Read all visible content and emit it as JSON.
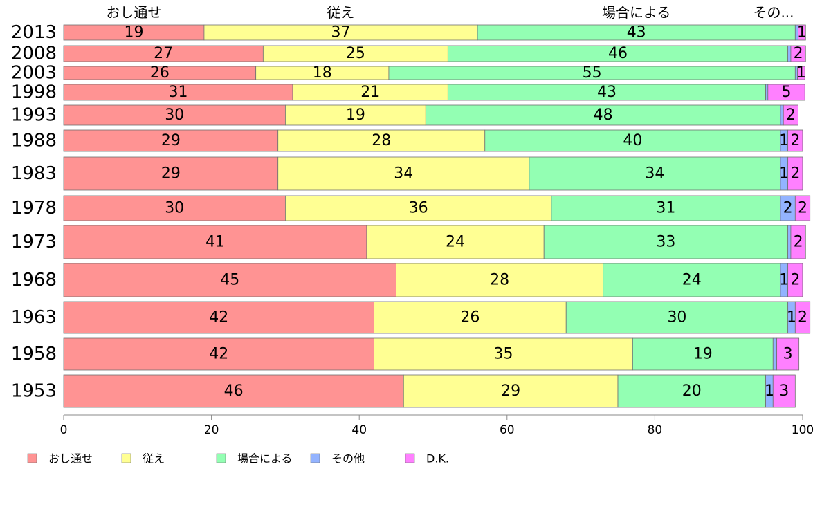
{
  "chart_data": {
    "type": "bar",
    "orientation": "horizontal",
    "stacked": true,
    "categories": [
      "2013",
      "2008",
      "2003",
      "1998",
      "1993",
      "1988",
      "1983",
      "1978",
      "1973",
      "1968",
      "1963",
      "1958",
      "1953"
    ],
    "series": [
      {
        "name": "おし通せ",
        "color": "#ff9393",
        "values": [
          19,
          27,
          26,
          31,
          30,
          29,
          29,
          30,
          41,
          45,
          42,
          42,
          46
        ]
      },
      {
        "name": "従え",
        "color": "#ffff93",
        "values": [
          37,
          25,
          18,
          21,
          19,
          28,
          34,
          36,
          24,
          28,
          26,
          35,
          29
        ]
      },
      {
        "name": "場合による",
        "color": "#93ffb3",
        "values": [
          43,
          46,
          55,
          43,
          48,
          40,
          34,
          31,
          33,
          24,
          30,
          19,
          20
        ]
      },
      {
        "name": "その他",
        "color": "#93b3ff",
        "values": [
          0.4,
          0.4,
          0.3,
          0.3,
          0.4,
          1,
          1,
          2,
          0.4,
          1,
          1,
          0.5,
          1
        ]
      },
      {
        "name": "D.K.",
        "color": "#ff80ff",
        "values": [
          1,
          2,
          1,
          5,
          2,
          2,
          2,
          2,
          2,
          2,
          2,
          3,
          3
        ]
      }
    ],
    "data_labels": [
      [
        "19",
        "37",
        "43",
        "",
        "1"
      ],
      [
        "27",
        "25",
        "46",
        "",
        "2"
      ],
      [
        "26",
        "18",
        "55",
        "",
        "1"
      ],
      [
        "31",
        "21",
        "43",
        "",
        "5"
      ],
      [
        "30",
        "19",
        "48",
        "",
        "2"
      ],
      [
        "29",
        "28",
        "40",
        "1",
        "2"
      ],
      [
        "29",
        "34",
        "34",
        "1",
        "2"
      ],
      [
        "30",
        "36",
        "31",
        "2",
        "2"
      ],
      [
        "41",
        "24",
        "33",
        "",
        "2"
      ],
      [
        "45",
        "28",
        "24",
        "1",
        "2"
      ],
      [
        "42",
        "26",
        "30",
        "1",
        "2"
      ],
      [
        "42",
        "35",
        "19",
        "",
        "3"
      ],
      [
        "46",
        "29",
        "20",
        "1",
        "3"
      ]
    ],
    "top_labels": [
      "おし通せ",
      "従え",
      "場合による",
      "その..."
    ],
    "xlim": [
      0,
      100
    ],
    "xticks": [
      "0",
      "20",
      "40",
      "60",
      "80",
      "100"
    ],
    "grid": false,
    "legend_position": "bottom-left"
  }
}
